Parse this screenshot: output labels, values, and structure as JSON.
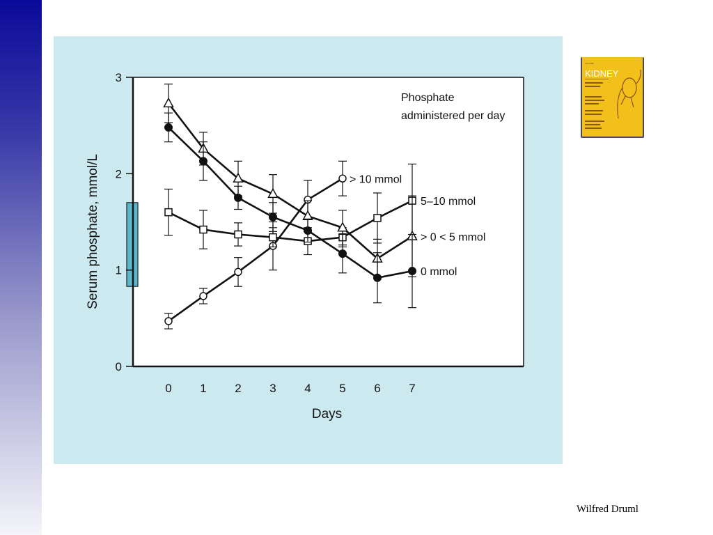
{
  "colors": {
    "sidebar_top": "#0a0a9a",
    "sidebar_bottom": "#f4f4fa",
    "panel_bg": "#cce9f0",
    "plot_bg": "#ffffff",
    "normal_range_bar": "#5bb7c9",
    "book_cover": "#f2c01a"
  },
  "book": {
    "title": "KIDNEY",
    "icon": "book-cover-kidney"
  },
  "author": "Wilfred Druml",
  "chart_data": {
    "type": "line",
    "xlabel": "Days",
    "ylabel": "Serum phosphate, mmol/L",
    "xlim": [
      -1,
      10.3
    ],
    "ylim": [
      0,
      3
    ],
    "x_ticks": [
      "0",
      "1",
      "2",
      "3",
      "4",
      "5",
      "6",
      "7"
    ],
    "y_ticks": [
      "0",
      "1",
      "2",
      "3"
    ],
    "grid": false,
    "legend_title_line1": "Phosphate",
    "legend_title_line2": "administered per day",
    "normal_range": [
      0.83,
      1.7
    ],
    "series": [
      {
        "name": "> 10 mmol",
        "marker": "circle-open",
        "x": [
          0,
          1,
          2,
          3,
          4,
          5
        ],
        "y": [
          0.47,
          0.73,
          0.98,
          1.25,
          1.73,
          1.95
        ],
        "err": [
          0.08,
          0.08,
          0.15,
          0.25,
          0.2,
          0.18
        ]
      },
      {
        "name": "5–10 mmol",
        "marker": "square-open",
        "x": [
          0,
          1,
          2,
          3,
          4,
          5,
          6,
          7
        ],
        "y": [
          1.6,
          1.42,
          1.37,
          1.34,
          1.3,
          1.34,
          1.54,
          1.72
        ],
        "err": [
          0.24,
          0.2,
          0.12,
          0.1,
          0.14,
          0.1,
          0.26,
          0.38
        ]
      },
      {
        "name": "> 0 < 5 mmol",
        "marker": "triangle-open",
        "x": [
          0,
          1,
          2,
          3,
          4,
          5,
          6,
          7
        ],
        "y": [
          2.73,
          2.26,
          1.95,
          1.79,
          1.56,
          1.44,
          1.12,
          1.35
        ],
        "err": [
          0.2,
          0.17,
          0.18,
          0.2,
          0.16,
          0.18,
          0.2,
          0.42
        ]
      },
      {
        "name": "0  mmol",
        "marker": "circle-filled",
        "x": [
          0,
          1,
          2,
          3,
          4,
          5,
          6,
          7
        ],
        "y": [
          2.48,
          2.13,
          1.75,
          1.55,
          1.41,
          1.17,
          0.92,
          0.99
        ],
        "err": [
          0.15,
          0.2,
          0.12,
          0.15,
          0.12,
          0.2,
          0.26,
          0.38
        ]
      }
    ]
  }
}
